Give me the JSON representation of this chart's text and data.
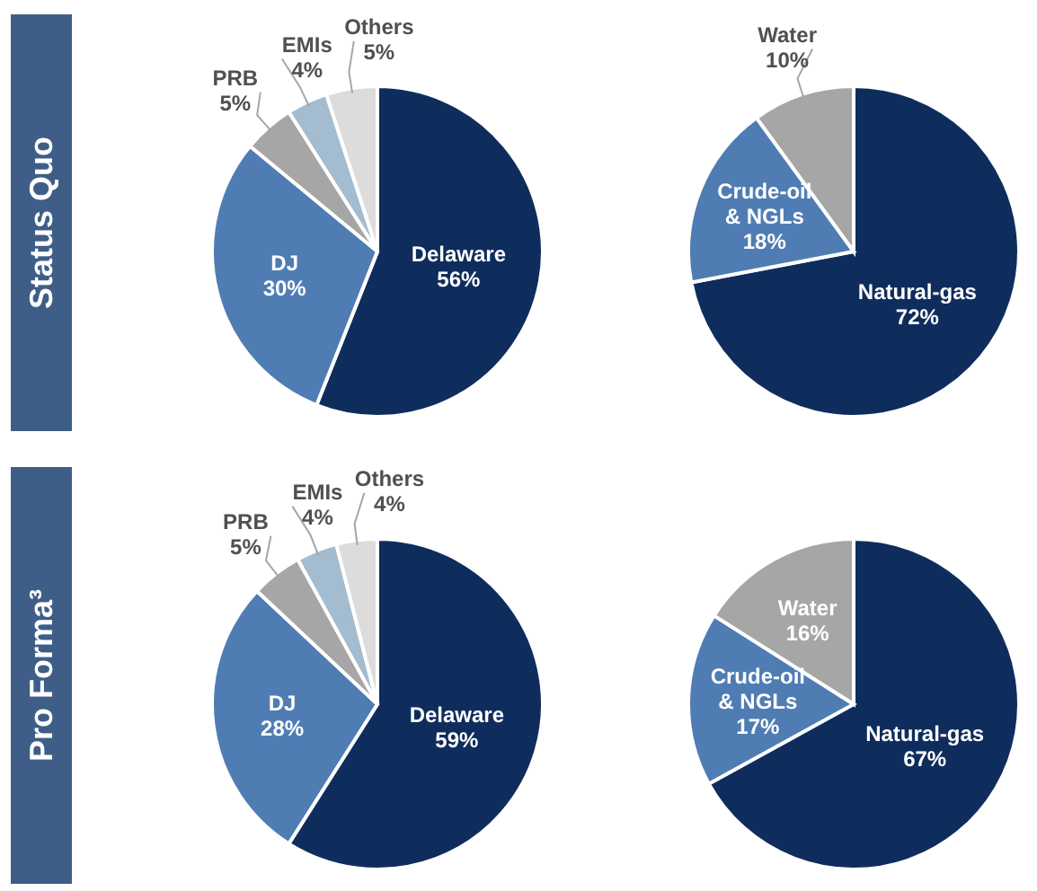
{
  "chart_data": [
    {
      "type": "pie",
      "title": "Status Quo",
      "categories": [
        "Delaware",
        "DJ",
        "PRB",
        "EMIs",
        "Others"
      ],
      "values": [
        56,
        30,
        5,
        4,
        5
      ],
      "value_labels": [
        "56%",
        "30%",
        "5%",
        "4%",
        "5%"
      ],
      "colors": [
        "#0f2d5c",
        "#4f7db3",
        "#a6a6a6",
        "#a3bccf",
        "#dcdcdc"
      ]
    },
    {
      "type": "pie",
      "categories": [
        "Natural-gas",
        "Crude-oil & NGLs",
        "Water"
      ],
      "values": [
        72,
        18,
        10
      ],
      "value_labels": [
        "72%",
        "18%",
        "10%"
      ],
      "colors": [
        "#0f2d5c",
        "#4f7db3",
        "#a6a6a6"
      ]
    },
    {
      "type": "pie",
      "title": "Pro Forma³",
      "categories": [
        "Delaware",
        "DJ",
        "PRB",
        "EMIs",
        "Others"
      ],
      "values": [
        59,
        28,
        5,
        4,
        4
      ],
      "value_labels": [
        "59%",
        "28%",
        "5%",
        "4%",
        "4%"
      ],
      "colors": [
        "#0f2d5c",
        "#4f7db3",
        "#a6a6a6",
        "#a3bccf",
        "#dcdcdc"
      ]
    },
    {
      "type": "pie",
      "categories": [
        "Natural-gas",
        "Crude-oil & NGLs",
        "Water"
      ],
      "values": [
        67,
        17,
        16
      ],
      "value_labels": [
        "67%",
        "17%",
        "16%"
      ],
      "colors": [
        "#0f2d5c",
        "#4f7db3",
        "#a6a6a6"
      ]
    }
  ]
}
